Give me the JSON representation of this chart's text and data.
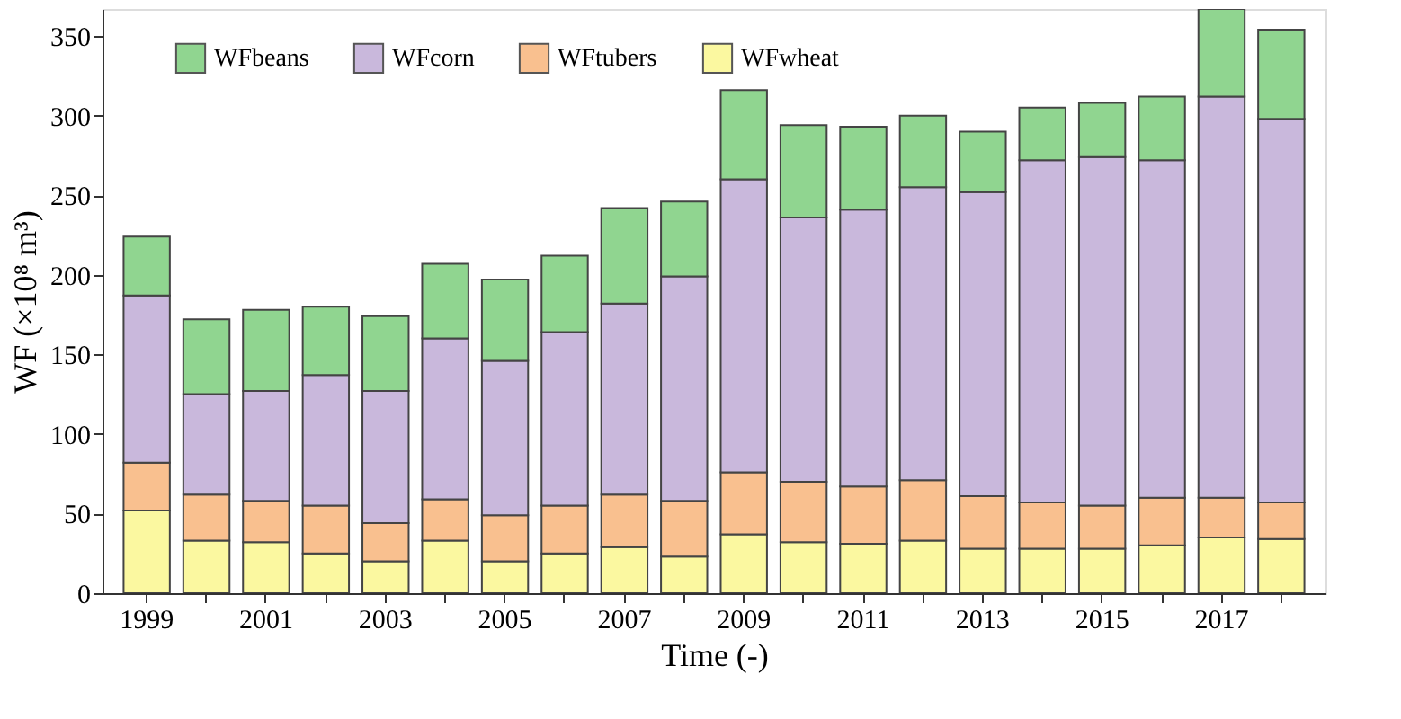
{
  "chart_data": {
    "type": "bar",
    "stacked": true,
    "xlabel": "Time (-)",
    "ylabel": "WF (×10⁸ m³)",
    "categories": [
      "1999",
      null,
      "2001",
      null,
      "2003",
      null,
      "2005",
      null,
      "2007",
      null,
      "2009",
      null,
      "2011",
      null,
      "2013",
      null,
      "2015",
      null,
      "2017",
      null
    ],
    "series": [
      {
        "name": "WFwheat",
        "color": "#fbf8a0",
        "values": [
          52,
          33,
          32,
          25,
          20,
          33,
          20,
          25,
          29,
          23,
          37,
          32,
          31,
          33,
          28,
          28,
          28,
          30,
          35,
          34
        ]
      },
      {
        "name": "WFtubers",
        "color": "#f9c08f",
        "values": [
          30,
          29,
          26,
          30,
          24,
          26,
          29,
          30,
          33,
          35,
          39,
          38,
          36,
          38,
          33,
          29,
          27,
          30,
          25,
          23
        ]
      },
      {
        "name": "WFcorn",
        "color": "#c9b8dc",
        "values": [
          105,
          63,
          69,
          82,
          83,
          101,
          97,
          109,
          120,
          141,
          184,
          166,
          174,
          184,
          191,
          215,
          219,
          212,
          252,
          241
        ]
      },
      {
        "name": "WFbeans",
        "color": "#90d590",
        "values": [
          37,
          47,
          51,
          43,
          47,
          47,
          51,
          48,
          60,
          47,
          56,
          58,
          52,
          45,
          38,
          33,
          34,
          40,
          55,
          56
        ]
      }
    ],
    "ylim": [
      0,
      367
    ],
    "yticks": [
      0,
      50,
      100,
      150,
      200,
      250,
      300,
      350
    ],
    "grid": false,
    "legend": "top left"
  }
}
